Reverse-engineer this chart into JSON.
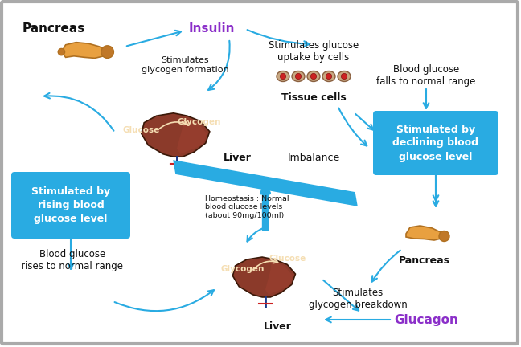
{
  "bg_color": "#f0f0f0",
  "border_color": "#999999",
  "arrow_color": "#29abe2",
  "cyan_box_color": "#29abe2",
  "insulin_color": "#8b2fc9",
  "glucagon_color": "#8b2fc9",
  "liver_color": "#8b3a2a",
  "liver_color2": "#7a2e1e",
  "pancreas_color": "#e8a040",
  "pancreas_dark": "#c07828",
  "text_color": "#111111",
  "labels": {
    "pancreas_top": "Pancreas",
    "insulin": "Insulin",
    "stimulates_glycogen_formation": "Stimulates\nglycogen formation",
    "glycogen_top": "Glycogen",
    "glucose_top": "Glucose",
    "liver_top": "Liver",
    "stimulates_glucose_uptake": "Stimulates glucose\nuptake by cells",
    "tissue_cells": "Tissue cells",
    "blood_glucose_falls": "Blood glucose\nfalls to normal range",
    "stimulated_declining": "Stimulated by\ndeclining blood\nglucose level",
    "imbalance": "Imbalance",
    "homeostasis": "Homeostasis : Normal\nblood glucose levels\n(about 90mg/100ml)",
    "stimulated_rising": "Stimulated by\nrising blood\nglucose level",
    "blood_glucose_rises": "Blood glucose\nrises to normal range",
    "glucose_bottom": "Glucose",
    "glycogen_bottom": "Glycogen",
    "liver_bottom": "Liver",
    "stimulates_glycogen_breakdown": "Stimulates\nglycogen breakdown",
    "glucagon": "Glucagon",
    "pancreas_bottom": "Pancreas"
  }
}
